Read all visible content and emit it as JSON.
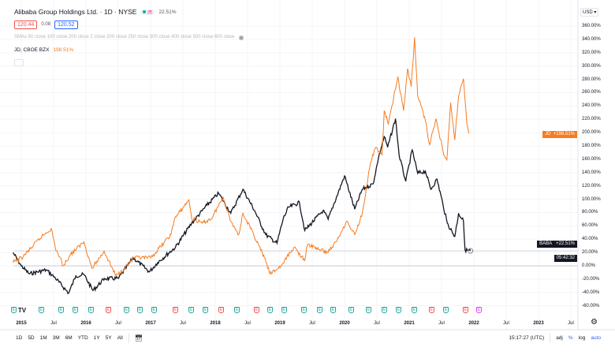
{
  "header": {
    "symbol_title": "Alibaba Group Holdings Ltd. · 1D · NYSE",
    "change_pct": "22.51%",
    "bid": "120.44",
    "spread": "0.08",
    "ask": "120.52",
    "indicators": "SMAs 50 close 100 close 200 close 2 close 200 close 250 close 300 close 400 close 500 close 600 close",
    "compare_symbol": "JD, CBOE BZX",
    "compare_pct": "198.51%"
  },
  "price_axis": {
    "currency": "USD",
    "labels": [
      "360.00%",
      "340.00%",
      "320.00%",
      "300.00%",
      "280.00%",
      "260.00%",
      "240.00%",
      "220.00%",
      "200.00%",
      "180.00%",
      "160.00%",
      "140.00%",
      "120.00%",
      "100.00%",
      "80.00%",
      "60.00%",
      "40.00%",
      "20.00%",
      "0.00%",
      "-20.00%",
      "-40.00%",
      "-60.00%"
    ],
    "jd_tag": {
      "symbol": "JD",
      "value": "+198.51%"
    },
    "baba_tag": {
      "symbol": "BABA",
      "value": "+22.51%",
      "countdown": "05:42:32"
    }
  },
  "time_axis": {
    "labels": [
      "2015",
      "Jul",
      "2016",
      "Jul",
      "2017",
      "Jul",
      "2018",
      "Jul",
      "2019",
      "Jul",
      "2020",
      "Jul",
      "2021",
      "Jul",
      "2022",
      "Jul",
      "2023",
      "Jul"
    ]
  },
  "bottom_bar": {
    "ranges": [
      "1D",
      "5D",
      "1M",
      "3M",
      "6M",
      "YTD",
      "1Y",
      "5Y",
      "All"
    ],
    "time": "15:17:27 (UTC)",
    "adj": "adj",
    "percent": "%",
    "log": "log",
    "auto": "auto"
  },
  "events": {
    "earnings_letter": "E",
    "types": [
      "g",
      "g",
      "g",
      "g",
      "g",
      "r",
      "g",
      "g",
      "g",
      "r",
      "g",
      "g",
      "r",
      "g",
      "r",
      "g",
      "g",
      "g",
      "g",
      "g",
      "g",
      "g",
      "g",
      "g",
      "g",
      "r",
      "g",
      "r",
      "p"
    ],
    "colors": {
      "g": "#26a69a",
      "r": "#ef5350",
      "p": "#e040fb"
    }
  },
  "colors": {
    "baba": "#131722",
    "jd": "#f57c20",
    "accent": "#2962ff"
  },
  "chart_data": {
    "type": "line",
    "ylabel": "",
    "y_unit": "%",
    "ylim": [
      -70,
      370
    ],
    "xlim": [
      "2014-11-01",
      "2023-12-31"
    ],
    "series": [
      {
        "name": "BABA",
        "color": "#131722",
        "points": [
          [
            "2014-11-15",
            20
          ],
          [
            "2015-01-01",
            0
          ],
          [
            "2015-02-15",
            -12
          ],
          [
            "2015-05-20",
            -6
          ],
          [
            "2015-07-10",
            -18
          ],
          [
            "2015-09-25",
            -41
          ],
          [
            "2015-11-05",
            -15
          ],
          [
            "2015-12-20",
            -13
          ],
          [
            "2016-02-10",
            -37
          ],
          [
            "2016-04-15",
            -19
          ],
          [
            "2016-07-01",
            -19
          ],
          [
            "2016-09-25",
            12
          ],
          [
            "2016-12-25",
            -9
          ],
          [
            "2017-02-10",
            5
          ],
          [
            "2017-05-20",
            28
          ],
          [
            "2017-08-20",
            64
          ],
          [
            "2017-11-15",
            91
          ],
          [
            "2018-01-20",
            109
          ],
          [
            "2018-03-28",
            79
          ],
          [
            "2018-06-05",
            115
          ],
          [
            "2018-08-10",
            83
          ],
          [
            "2018-10-12",
            47
          ],
          [
            "2018-12-15",
            34
          ],
          [
            "2019-01-20",
            71
          ],
          [
            "2019-02-20",
            88
          ],
          [
            "2019-04-20",
            95
          ],
          [
            "2019-05-20",
            53
          ],
          [
            "2019-09-01",
            83
          ],
          [
            "2019-09-30",
            70
          ],
          [
            "2020-01-01",
            135
          ],
          [
            "2020-02-28",
            85
          ],
          [
            "2020-04-10",
            115
          ],
          [
            "2020-06-10",
            123
          ],
          [
            "2020-07-10",
            162
          ],
          [
            "2020-08-12",
            194
          ],
          [
            "2020-09-01",
            178
          ],
          [
            "2020-10-15",
            221
          ],
          [
            "2020-11-05",
            166
          ],
          [
            "2020-12-12",
            127
          ],
          [
            "2021-01-18",
            174
          ],
          [
            "2021-02-18",
            139
          ],
          [
            "2021-04-01",
            142
          ],
          [
            "2021-05-01",
            115
          ],
          [
            "2021-06-06",
            130
          ],
          [
            "2021-07-10",
            91
          ],
          [
            "2021-08-03",
            64
          ],
          [
            "2021-09-15",
            44
          ],
          [
            "2021-10-06",
            79
          ],
          [
            "2021-11-03",
            67
          ],
          [
            "2021-11-12",
            24
          ],
          [
            "2021-12-12",
            22.51
          ]
        ]
      },
      {
        "name": "JD",
        "color": "#f57c20",
        "points": [
          [
            "2014-11-15",
            5
          ],
          [
            "2015-01-12",
            14
          ],
          [
            "2015-04-25",
            44
          ],
          [
            "2015-06-18",
            56
          ],
          [
            "2015-07-10",
            28
          ],
          [
            "2015-08-25",
            0
          ],
          [
            "2015-10-05",
            17
          ],
          [
            "2015-12-20",
            36
          ],
          [
            "2016-02-05",
            -4
          ],
          [
            "2016-04-12",
            22
          ],
          [
            "2016-06-18",
            -15
          ],
          [
            "2016-08-05",
            -4
          ],
          [
            "2016-09-25",
            12
          ],
          [
            "2017-01-03",
            12
          ],
          [
            "2017-04-25",
            47
          ],
          [
            "2017-05-15",
            71
          ],
          [
            "2017-08-05",
            99
          ],
          [
            "2017-08-20",
            71
          ],
          [
            "2017-10-18",
            64
          ],
          [
            "2017-12-10",
            71
          ],
          [
            "2018-02-15",
            103
          ],
          [
            "2018-03-28",
            67
          ],
          [
            "2018-05-12",
            47
          ],
          [
            "2018-06-05",
            79
          ],
          [
            "2018-08-05",
            47
          ],
          [
            "2018-10-05",
            12
          ],
          [
            "2018-11-06",
            -12
          ],
          [
            "2019-01-10",
            0
          ],
          [
            "2019-02-28",
            20
          ],
          [
            "2019-03-20",
            28
          ],
          [
            "2019-05-20",
            8
          ],
          [
            "2019-06-05",
            32
          ],
          [
            "2019-09-25",
            20
          ],
          [
            "2019-11-15",
            36
          ],
          [
            "2020-01-12",
            67
          ],
          [
            "2020-02-28",
            47
          ],
          [
            "2020-04-10",
            79
          ],
          [
            "2020-05-25",
            154
          ],
          [
            "2020-06-25",
            178
          ],
          [
            "2020-07-30",
            166
          ],
          [
            "2020-08-12",
            233
          ],
          [
            "2020-09-05",
            213
          ],
          [
            "2020-10-28",
            284
          ],
          [
            "2020-11-30",
            233
          ],
          [
            "2020-12-22",
            296
          ],
          [
            "2021-01-12",
            269
          ],
          [
            "2021-02-01",
            343
          ],
          [
            "2021-02-18",
            257
          ],
          [
            "2021-04-01",
            218
          ],
          [
            "2021-04-25",
            182
          ],
          [
            "2021-06-01",
            221
          ],
          [
            "2021-07-10",
            171
          ],
          [
            "2021-08-01",
            159
          ],
          [
            "2021-08-22",
            245
          ],
          [
            "2021-09-15",
            189
          ],
          [
            "2021-10-06",
            255
          ],
          [
            "2021-11-03",
            281
          ],
          [
            "2021-11-22",
            213
          ],
          [
            "2021-12-03",
            198.51
          ]
        ]
      }
    ]
  }
}
